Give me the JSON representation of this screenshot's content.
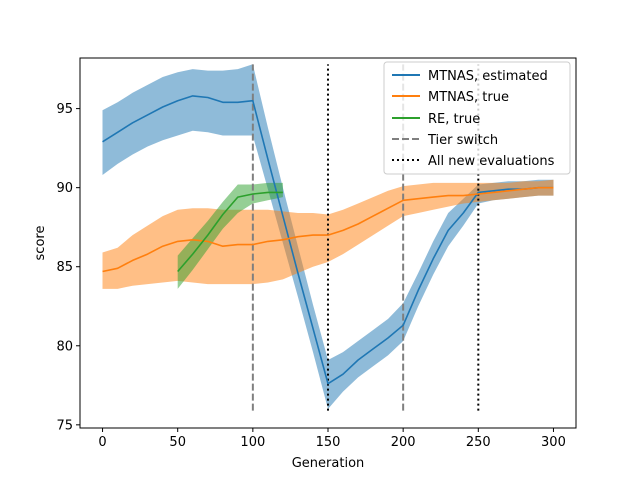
{
  "chart_data": {
    "type": "line",
    "xlabel": "Generation",
    "ylabel": "score",
    "xlim": [
      -15,
      315
    ],
    "ylim": [
      74.8,
      98.2
    ],
    "x_ticks": [
      0,
      50,
      100,
      150,
      200,
      250,
      300
    ],
    "y_ticks": [
      75,
      80,
      85,
      90,
      95
    ],
    "grid": false,
    "legend_position": "top-right",
    "series": [
      {
        "name": "MTNAS, estimated",
        "color": "#1f77b4",
        "band_color": "#1f77b4",
        "band_opacity": 0.5,
        "x": [
          0,
          10,
          20,
          30,
          40,
          50,
          60,
          70,
          80,
          90,
          100,
          110,
          120,
          130,
          140,
          150,
          160,
          170,
          180,
          190,
          200,
          210,
          220,
          230,
          240,
          250,
          260,
          270,
          280,
          290,
          300
        ],
        "y": [
          92.9,
          93.5,
          94.1,
          94.6,
          95.1,
          95.5,
          95.8,
          95.7,
          95.4,
          95.4,
          95.5,
          91.8,
          88.2,
          84.6,
          81.1,
          77.6,
          78.2,
          79.1,
          79.8,
          80.5,
          81.3,
          83.5,
          85.5,
          87.3,
          88.4,
          89.7,
          89.8,
          89.9,
          89.9,
          90.0,
          90.0
        ],
        "lower": [
          90.8,
          91.5,
          92.1,
          92.6,
          93.0,
          93.3,
          93.6,
          93.5,
          93.3,
          93.3,
          93.3,
          89.9,
          86.5,
          83.1,
          79.6,
          76.0,
          77.1,
          78.0,
          78.7,
          79.4,
          80.3,
          82.5,
          84.5,
          86.3,
          87.6,
          89.0,
          89.2,
          89.3,
          89.4,
          89.5,
          89.5
        ],
        "upper": [
          94.9,
          95.4,
          96.0,
          96.5,
          97.0,
          97.3,
          97.5,
          97.4,
          97.4,
          97.5,
          97.8,
          93.8,
          90.0,
          86.3,
          82.6,
          79.1,
          79.6,
          80.3,
          81.0,
          81.7,
          82.7,
          84.6,
          86.6,
          88.4,
          89.3,
          90.2,
          90.3,
          90.4,
          90.4,
          90.5,
          90.5
        ]
      },
      {
        "name": "MTNAS, true",
        "color": "#ff7f0e",
        "band_color": "#ff7f0e",
        "band_opacity": 0.5,
        "x": [
          0,
          10,
          20,
          30,
          40,
          50,
          60,
          70,
          80,
          90,
          100,
          110,
          120,
          130,
          140,
          150,
          160,
          170,
          180,
          190,
          200,
          210,
          220,
          230,
          240,
          250,
          260,
          270,
          280,
          290,
          300
        ],
        "y": [
          84.7,
          84.9,
          85.4,
          85.8,
          86.3,
          86.6,
          86.7,
          86.6,
          86.3,
          86.4,
          86.4,
          86.6,
          86.7,
          86.9,
          87.0,
          87.0,
          87.3,
          87.7,
          88.2,
          88.7,
          89.2,
          89.3,
          89.4,
          89.5,
          89.5,
          89.6,
          89.7,
          89.8,
          89.9,
          90.0,
          90.0
        ],
        "lower": [
          83.6,
          83.6,
          83.8,
          83.9,
          84.0,
          84.1,
          84.0,
          83.9,
          83.9,
          83.9,
          83.9,
          84.0,
          84.2,
          84.6,
          85.0,
          85.3,
          85.8,
          86.4,
          87.0,
          87.6,
          88.2,
          88.4,
          88.6,
          88.8,
          89.0,
          89.1,
          89.2,
          89.3,
          89.4,
          89.5,
          89.5
        ],
        "upper": [
          85.9,
          86.2,
          87.0,
          87.6,
          88.2,
          88.6,
          88.7,
          88.7,
          88.6,
          88.6,
          88.6,
          88.6,
          88.5,
          88.4,
          88.4,
          88.3,
          88.6,
          89.0,
          89.4,
          89.8,
          90.1,
          90.2,
          90.3,
          90.3,
          90.3,
          90.3,
          90.3,
          90.3,
          90.4,
          90.4,
          90.5
        ]
      },
      {
        "name": "RE, true",
        "color": "#2ca02c",
        "band_color": "#2ca02c",
        "band_opacity": 0.5,
        "x": [
          50,
          60,
          70,
          80,
          90,
          100,
          110,
          120
        ],
        "y": [
          84.7,
          85.8,
          87.0,
          88.3,
          89.4,
          89.6,
          89.7,
          89.7
        ],
        "lower": [
          83.6,
          84.8,
          86.1,
          87.4,
          88.4,
          89.0,
          89.2,
          89.4
        ],
        "upper": [
          85.7,
          86.8,
          87.9,
          89.1,
          90.2,
          90.2,
          90.3,
          90.3
        ]
      }
    ],
    "vlines": [
      {
        "name": "Tier switch",
        "style": "dashed",
        "color": "#7f7f7f",
        "x": [
          100,
          200
        ],
        "ymin": 75.9,
        "ymax": 97.8
      },
      {
        "name": "All new evaluations",
        "style": "dotted",
        "color": "#000000",
        "x": [
          150,
          250
        ],
        "ymin": 75.9,
        "ymax": 97.8
      }
    ]
  }
}
